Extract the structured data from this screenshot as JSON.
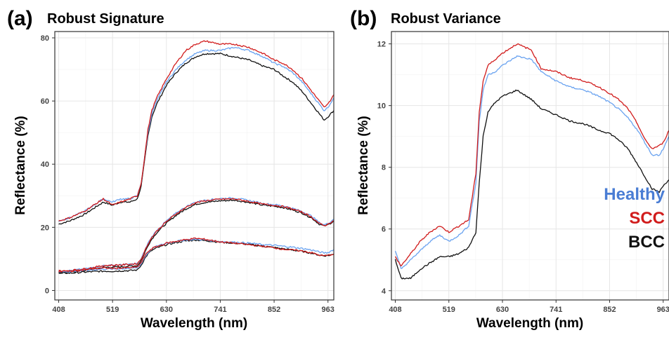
{
  "colors": {
    "Healthy": "#4a7dd4",
    "HealthyLine": "#6aa3f0",
    "SCC": "#d11c1c",
    "BCC": "#111111"
  },
  "chart_data": [
    {
      "type": "line",
      "panel_letter": "(a)",
      "title": "Robust Signature",
      "xlabel": "Wavelength (nm)",
      "ylabel": "Reflectance (%)",
      "xlim": [
        400,
        975
      ],
      "ylim": [
        -3,
        82
      ],
      "x_ticks": [
        408,
        519,
        630,
        741,
        852,
        963
      ],
      "y_ticks": [
        0,
        20,
        40,
        60,
        80
      ],
      "grid": true,
      "x": [
        408,
        430,
        460,
        480,
        500,
        519,
        535,
        555,
        570,
        578,
        585,
        592,
        600,
        610,
        620,
        630,
        650,
        670,
        690,
        710,
        741,
        770,
        800,
        830,
        852,
        870,
        890,
        910,
        930,
        945,
        955,
        963,
        975
      ],
      "series": [
        {
          "name": "Healthy",
          "group": "upper",
          "values": [
            22,
            23,
            25,
            27,
            29,
            28,
            29,
            29,
            30,
            34,
            42,
            50,
            56,
            60,
            63,
            66,
            70,
            73,
            75,
            76,
            76,
            77,
            76,
            74,
            72,
            71,
            69,
            66,
            62,
            59,
            57,
            58,
            61
          ]
        },
        {
          "name": "SCC",
          "group": "upper",
          "values": [
            22,
            23,
            25,
            27,
            29,
            27,
            28,
            29,
            30,
            34,
            42,
            51,
            57,
            61,
            64,
            67,
            72,
            76,
            78,
            79,
            78,
            78,
            77,
            75,
            73,
            72,
            70,
            67,
            63,
            60,
            58,
            59,
            62
          ]
        },
        {
          "name": "BCC",
          "group": "upper",
          "values": [
            21,
            22,
            24,
            26,
            28,
            27,
            28,
            28,
            29,
            33,
            41,
            49,
            55,
            59,
            62,
            65,
            69,
            72,
            74,
            75,
            75,
            74,
            73,
            71,
            70,
            68,
            66,
            63,
            59,
            56,
            54,
            55,
            57
          ]
        },
        {
          "name": "Healthy",
          "group": "middle",
          "values": [
            6,
            6.3,
            6.8,
            7.3,
            7.9,
            8,
            8.1,
            8.3,
            8.5,
            10,
            12.5,
            15,
            17,
            19,
            20.5,
            22,
            24.5,
            26.5,
            28,
            28.6,
            29.1,
            29.3,
            28.5,
            27.5,
            27.2,
            26.8,
            26,
            25,
            23.5,
            21.5,
            20.8,
            21.2,
            22.6
          ]
        },
        {
          "name": "SCC",
          "group": "middle",
          "values": [
            6,
            6.3,
            6.8,
            7.3,
            7.9,
            8,
            8.1,
            8.3,
            8.5,
            10,
            12.3,
            14.8,
            16.8,
            18.8,
            20.3,
            21.8,
            24.3,
            26.3,
            27.8,
            28.4,
            28.9,
            29,
            28.2,
            27.3,
            27,
            26.6,
            25.8,
            24.8,
            23.2,
            21.2,
            20.5,
            21,
            22.2
          ]
        },
        {
          "name": "BCC",
          "group": "middle",
          "values": [
            5.5,
            5.8,
            6.3,
            6.8,
            7.3,
            7.4,
            7.5,
            7.7,
            7.9,
            9.5,
            11.8,
            14.3,
            16.3,
            18.3,
            19.8,
            21.3,
            23.8,
            25.8,
            27.3,
            27.9,
            28.4,
            28.6,
            27.9,
            27,
            26.7,
            26.3,
            25.5,
            24.5,
            22.9,
            21,
            20.4,
            20.8,
            22
          ]
        },
        {
          "name": "Healthy",
          "group": "lower",
          "values": [
            6,
            6,
            6.3,
            6.6,
            6.8,
            6.8,
            6.9,
            7,
            7.2,
            8.5,
            10.5,
            12,
            13.2,
            14,
            14.5,
            15,
            15.6,
            16,
            16.2,
            16,
            15.5,
            15.3,
            15,
            14.5,
            14.3,
            14,
            13.7,
            13.3,
            12.8,
            12.2,
            11.9,
            12,
            13
          ]
        },
        {
          "name": "SCC",
          "group": "lower",
          "values": [
            6.2,
            6.1,
            6.5,
            6.9,
            7.1,
            7,
            7.1,
            7.2,
            7.4,
            8.8,
            10.8,
            12.3,
            13.3,
            13.9,
            14.4,
            15,
            15.6,
            16.1,
            16.5,
            16.2,
            15.4,
            15,
            14.5,
            14,
            13.5,
            13.1,
            12.8,
            12.5,
            11.9,
            11.2,
            11,
            11.1,
            11.6
          ]
        },
        {
          "name": "BCC",
          "group": "lower",
          "values": [
            5.6,
            5.5,
            5.8,
            6,
            6.1,
            6.1,
            6.2,
            6.3,
            6.5,
            8,
            10,
            11.6,
            12.7,
            13.5,
            14,
            14.5,
            15.2,
            15.7,
            16,
            15.8,
            15.3,
            15,
            14.6,
            14,
            13.6,
            13.2,
            12.8,
            12.4,
            11.8,
            11.2,
            11,
            11.1,
            11.4
          ]
        }
      ]
    },
    {
      "type": "line",
      "panel_letter": "(b)",
      "title": "Robust Variance",
      "xlabel": "Wavelength (nm)",
      "ylabel": "Reflectance (%)",
      "xlim": [
        400,
        975
      ],
      "ylim": [
        3.7,
        12.4
      ],
      "x_ticks": [
        408,
        519,
        630,
        741,
        852,
        963
      ],
      "y_ticks": [
        4,
        6,
        8,
        10,
        12
      ],
      "grid": true,
      "legend": {
        "position": "bottom-right",
        "entries": [
          "Healthy",
          "SCC",
          "BCC"
        ]
      },
      "x": [
        408,
        420,
        440,
        460,
        480,
        500,
        519,
        540,
        560,
        575,
        582,
        590,
        600,
        615,
        630,
        660,
        690,
        710,
        741,
        770,
        800,
        830,
        852,
        870,
        890,
        910,
        925,
        940,
        955,
        963,
        975
      ],
      "series": [
        {
          "name": "Healthy",
          "values": [
            5.3,
            4.7,
            5,
            5.3,
            5.6,
            5.8,
            5.6,
            5.8,
            6.1,
            7.5,
            9.5,
            10.5,
            11,
            11.1,
            11.3,
            11.6,
            11.5,
            11.1,
            10.8,
            10.6,
            10.5,
            10.3,
            10.1,
            9.9,
            9.6,
            9.2,
            8.8,
            8.4,
            8.4,
            8.6,
            9
          ]
        },
        {
          "name": "SCC",
          "values": [
            5.1,
            4.8,
            5.2,
            5.6,
            5.9,
            6.1,
            5.9,
            6.1,
            6.3,
            7.8,
            9.8,
            10.8,
            11.3,
            11.5,
            11.7,
            12,
            11.8,
            11.2,
            11.1,
            10.9,
            10.8,
            10.6,
            10.4,
            10.2,
            9.9,
            9.4,
            8.9,
            8.6,
            8.7,
            8.8,
            9.2
          ]
        },
        {
          "name": "BCC",
          "values": [
            5.0,
            4.4,
            4.4,
            4.7,
            4.9,
            5.1,
            5.1,
            5.2,
            5.4,
            5.9,
            7.5,
            9,
            9.8,
            10.1,
            10.3,
            10.5,
            10.2,
            9.9,
            9.7,
            9.5,
            9.4,
            9.2,
            9.1,
            8.9,
            8.6,
            8.1,
            7.7,
            7.3,
            7.2,
            7.4,
            7.6
          ]
        }
      ]
    }
  ]
}
